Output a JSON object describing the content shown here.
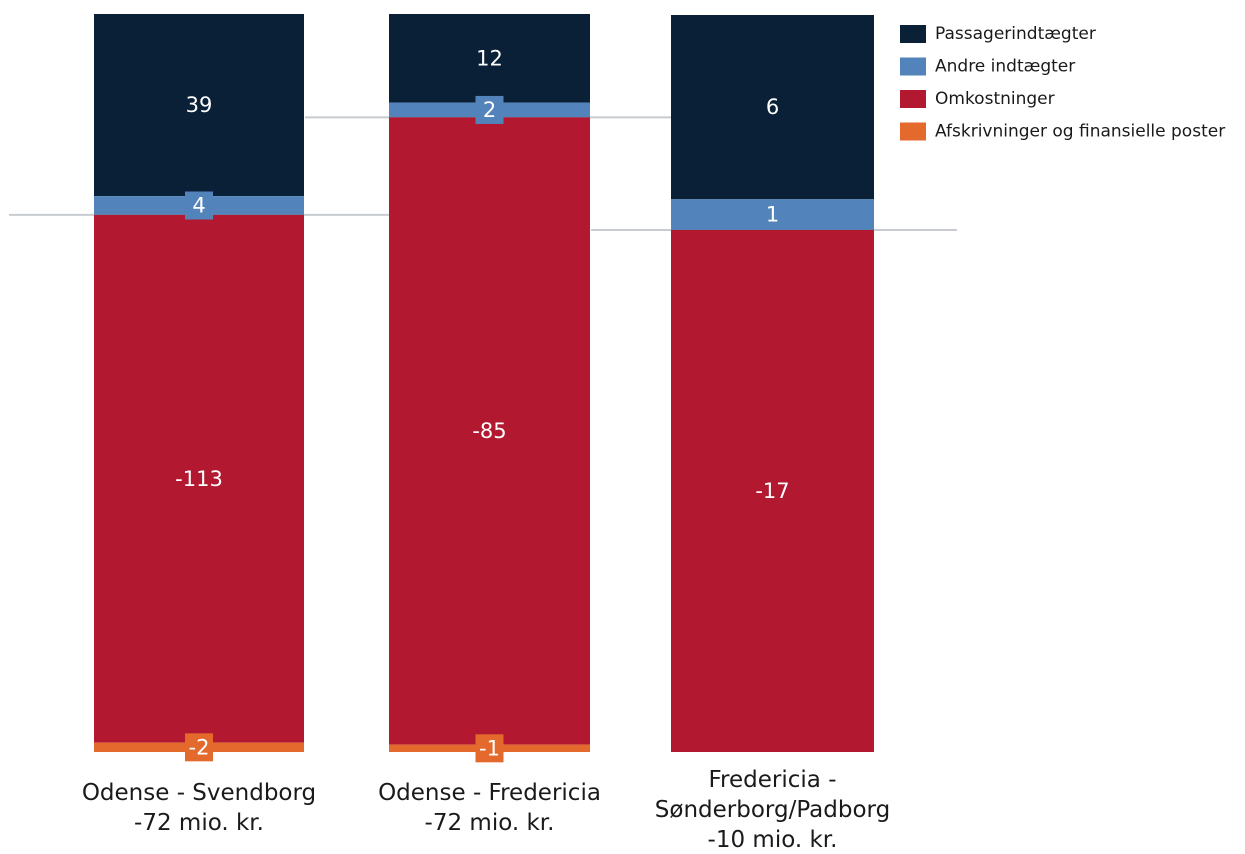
{
  "chart_data": {
    "type": "bar",
    "stacked": true,
    "legend_position": "top-right",
    "grid": false,
    "categories": [
      [
        "Odense - Svendborg",
        "-72 mio. kr."
      ],
      [
        "Odense - Fredericia",
        "-72 mio. kr."
      ],
      [
        "Fredericia -",
        "Sønderborg/Padborg",
        "-10 mio. kr."
      ]
    ],
    "series": [
      {
        "name": "Passagerindtægter",
        "color": "#0a2036",
        "values": [
          39,
          12,
          6
        ]
      },
      {
        "name": "Andre indtægter",
        "color": "#5283bb",
        "values": [
          4,
          2,
          1
        ]
      },
      {
        "name": "Omkostninger",
        "color": "#b2182f",
        "values": [
          -113,
          -85,
          -17
        ]
      },
      {
        "name": "Afskrivninger og finansielle poster",
        "color": "#e36a2c",
        "values": [
          -2,
          -1,
          null
        ]
      }
    ]
  }
}
